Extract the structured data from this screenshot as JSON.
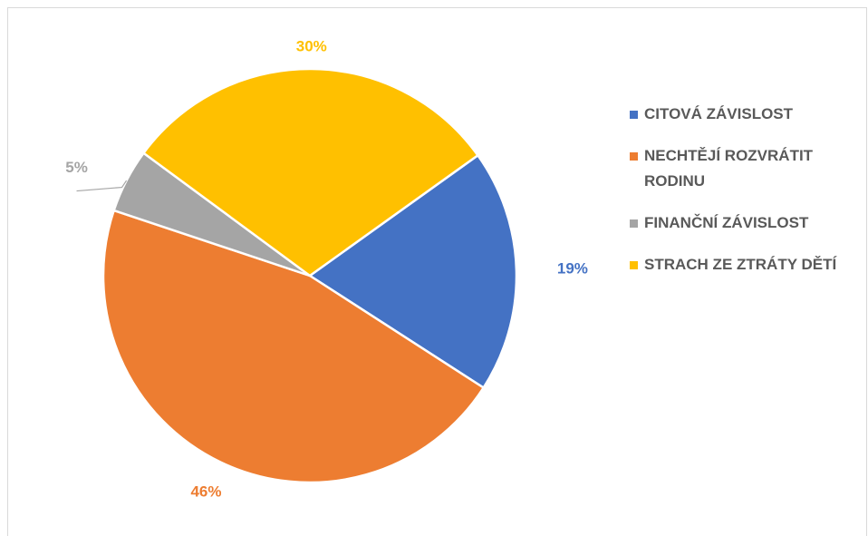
{
  "chart_data": {
    "type": "pie",
    "categories": [
      "CITOVÁ ZÁVISLOST",
      "NECHTĚJÍ ROZVRÁTIT RODINU",
      "FINANČNÍ ZÁVISLOST",
      "STRACH ZE ZTRÁTY DĚTÍ"
    ],
    "values": [
      19,
      46,
      5,
      30
    ],
    "value_labels": [
      "19%",
      "46%",
      "5%",
      "30%"
    ],
    "colors": [
      "#4472c4",
      "#ed7d31",
      "#a5a5a5",
      "#ffc000"
    ],
    "legend": "right"
  }
}
